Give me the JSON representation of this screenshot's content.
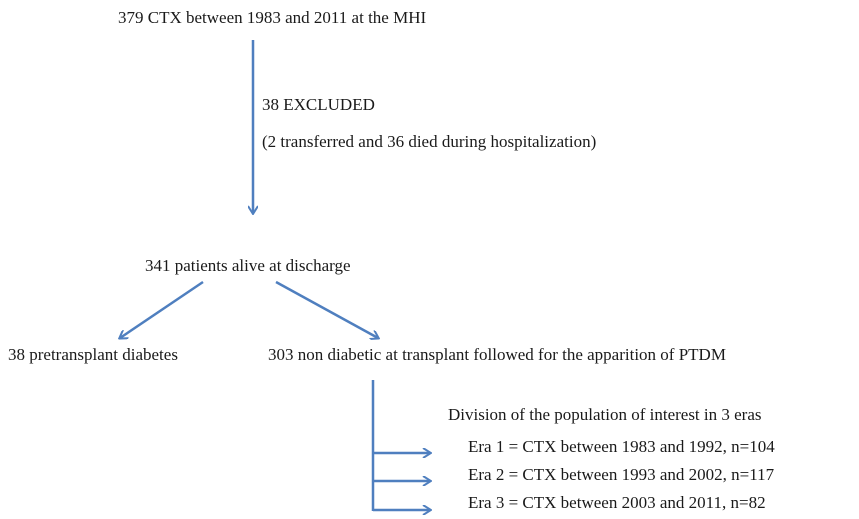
{
  "start": {
    "label": "379 CTX between 1983 and 2011 at the MHI"
  },
  "exclusion": {
    "title": "38 EXCLUDED",
    "detail": "(2 transferred and 36 died during hospitalization)"
  },
  "discharge": {
    "label": "341 patients alive at discharge"
  },
  "branches": [
    {
      "label": "38 pretransplant diabetes"
    },
    {
      "label": "303 non diabetic at transplant followed for the apparition of PTDM"
    }
  ],
  "eras": {
    "heading": "Division of the population of interest in 3 eras",
    "items": [
      "Era 1 = CTX between 1983 and 1992, n=104",
      "Era 2 = CTX between 1993 and 2002, n=117",
      "Era 3 = CTX between 2003 and 2011, n=82"
    ]
  }
}
